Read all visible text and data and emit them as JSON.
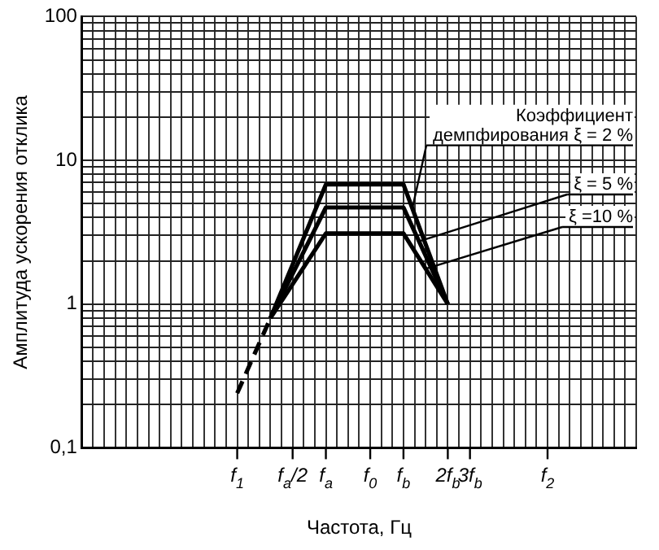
{
  "chart_data": {
    "type": "line",
    "xlabel": "Частота, Гц",
    "ylabel": "Амплитуда ускорения отклика",
    "ylim": [
      0.1,
      100
    ],
    "log": "y",
    "grid": true,
    "legend": "right",
    "marker": "none",
    "categories": [
      null,
      null,
      null,
      null,
      null,
      null,
      null,
      null,
      null,
      null,
      null,
      null,
      null,
      null,
      "f$_{1}$",
      null,
      null,
      null,
      null,
      "f$_{a}$/2",
      null,
      null,
      "f$_{a}$",
      null,
      null,
      null,
      "f$_{0}$",
      null,
      null,
      "f$_{b}$",
      null,
      null,
      null,
      "2f$_{b}$",
      null,
      "3f$_{b}$",
      null,
      null,
      null,
      null,
      null,
      null,
      "f$_{2}$",
      null,
      null,
      null,
      null,
      null,
      null,
      null,
      null
    ],
    "yticks": [
      {
        "value": 0.1,
        "label": "0,1"
      },
      {
        "value": 0.2,
        "label": null
      },
      {
        "value": 0.3,
        "label": null
      },
      {
        "value": 0.4,
        "label": null
      },
      {
        "value": 0.5,
        "label": null
      },
      {
        "value": 0.6,
        "label": null
      },
      {
        "value": 0.7,
        "label": null
      },
      {
        "value": 0.8,
        "label": null
      },
      {
        "value": 0.9,
        "label": null
      },
      1,
      {
        "value": 2,
        "label": null
      },
      {
        "value": 3,
        "label": null
      },
      {
        "value": 4,
        "label": null
      },
      {
        "value": 5,
        "label": null
      },
      {
        "value": 6,
        "label": null
      },
      {
        "value": 7,
        "label": null
      },
      {
        "value": 8,
        "label": null
      },
      {
        "value": 9,
        "label": null
      },
      10,
      {
        "value": 20,
        "label": null
      },
      {
        "value": 30,
        "label": null
      },
      {
        "value": 40,
        "label": null
      },
      {
        "value": 50,
        "label": null
      },
      {
        "value": 60,
        "label": null
      },
      {
        "value": 70,
        "label": null
      },
      {
        "value": 80,
        "label": null
      },
      {
        "value": 90,
        "label": null
      },
      100
    ],
    "series": [
      {
        "name": "Коэффициент демпфирования ξ = 2 %",
        "color": "#000000",
        "values": [
          null,
          null,
          null,
          null,
          null,
          null,
          null,
          null,
          null,
          null,
          null,
          null,
          null,
          null,
          null,
          null,
          null,
          0.8,
          null,
          null,
          null,
          null,
          6.8,
          null,
          null,
          null,
          null,
          null,
          null,
          6.8,
          null,
          null,
          null,
          1.0,
          null,
          null,
          null,
          null,
          null,
          null,
          null,
          null,
          null,
          null,
          null,
          null,
          null,
          null,
          null,
          null,
          null
        ]
      },
      {
        "name": "ξ = 5 %",
        "color": "#000000",
        "values": [
          null,
          null,
          null,
          null,
          null,
          null,
          null,
          null,
          null,
          null,
          null,
          null,
          null,
          null,
          null,
          null,
          null,
          0.8,
          null,
          null,
          null,
          null,
          4.7,
          null,
          null,
          null,
          null,
          null,
          null,
          4.7,
          null,
          null,
          null,
          1.0,
          null,
          null,
          null,
          null,
          null,
          null,
          null,
          null,
          null,
          null,
          null,
          null,
          null,
          null,
          null,
          null,
          null
        ]
      },
      {
        "name": "ξ =10 %",
        "color": "#000000",
        "values": [
          null,
          null,
          null,
          null,
          null,
          null,
          null,
          null,
          null,
          null,
          null,
          null,
          null,
          null,
          null,
          null,
          null,
          0.8,
          null,
          null,
          null,
          null,
          3.1,
          null,
          null,
          null,
          null,
          null,
          null,
          3.1,
          null,
          null,
          null,
          1.0,
          null,
          null,
          null,
          null,
          null,
          null,
          null,
          null,
          null,
          null,
          null,
          null,
          null,
          null,
          null,
          null,
          null
        ]
      },
      {
        "color": "#000000",
        "line_style": "dashed",
        "values": [
          null,
          null,
          null,
          null,
          null,
          null,
          null,
          null,
          null,
          null,
          null,
          null,
          null,
          null,
          0.24,
          null,
          null,
          0.8,
          null,
          null,
          null,
          null,
          null,
          null,
          null,
          null,
          null,
          null,
          null,
          null,
          null,
          null,
          null,
          null,
          null,
          null,
          null,
          null,
          null,
          null,
          null,
          null,
          null,
          null,
          null,
          null,
          null,
          null,
          null,
          null,
          null
        ]
      }
    ]
  }
}
